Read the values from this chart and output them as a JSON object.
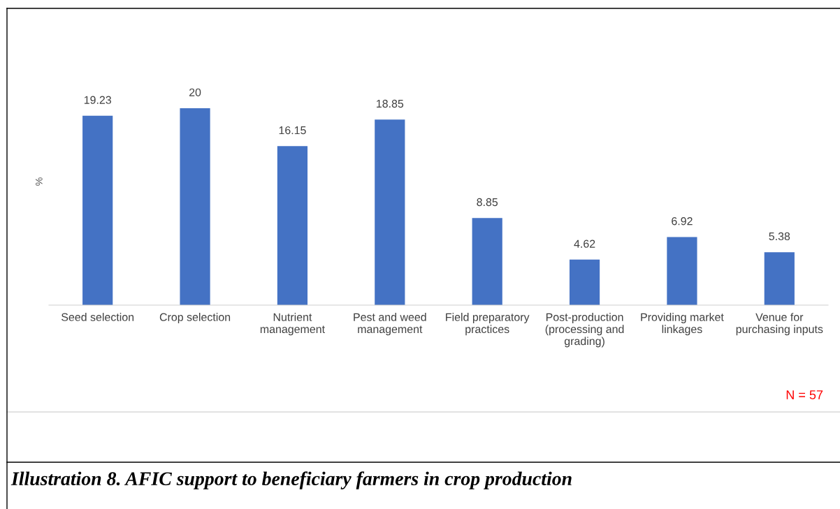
{
  "chart_data": {
    "type": "bar",
    "title": "Illustration 8. AFIC support to beneficiary farmers in crop production",
    "ylabel": "%",
    "categories": [
      "Seed selection",
      "Crop selection",
      "Nutrient management",
      "Pest and weed management",
      "Field preparatory practices",
      "Post-production (processing and grading)",
      "Providing market linkages",
      "Venue for purchasing inputs"
    ],
    "values": [
      19.23,
      20,
      16.15,
      18.85,
      8.85,
      4.62,
      6.92,
      5.38
    ],
    "color": "#4472c4",
    "data_labels": true,
    "grid": false,
    "legend": false,
    "annotations": [
      "N = 57"
    ]
  }
}
